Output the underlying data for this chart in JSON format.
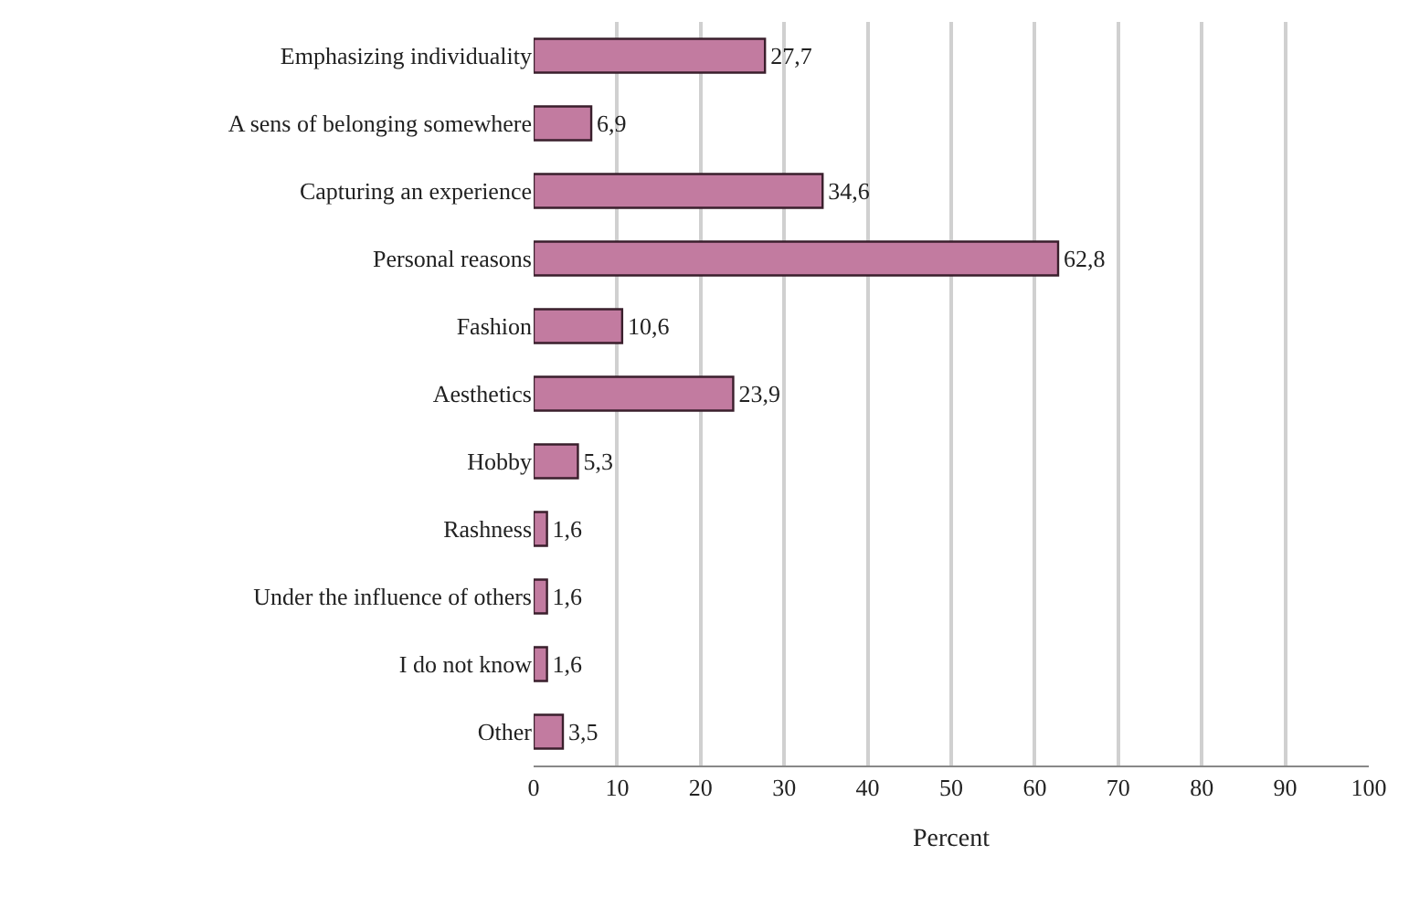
{
  "chart_data": {
    "type": "bar",
    "orientation": "horizontal",
    "xlabel": "Percent",
    "categories": [
      "Emphasizing individuality",
      "A sens of belonging somewhere",
      "Capturing an experience",
      "Personal reasons",
      "Fashion",
      "Aesthetics",
      "Hobby",
      "Rashness",
      "Under the influence of others",
      "I do not know",
      "Other"
    ],
    "values": [
      27.7,
      6.9,
      34.6,
      62.8,
      10.6,
      23.9,
      5.3,
      1.6,
      1.6,
      1.6,
      3.5
    ],
    "value_labels": [
      "27,7",
      "6,9",
      "34,6",
      "62,8",
      "10,6",
      "23,9",
      "5,3",
      "1,6",
      "1,6",
      "1,6",
      "3,5"
    ],
    "color": "#c27ba0",
    "xlim": [
      0,
      100
    ],
    "xticks": [
      0,
      10,
      20,
      30,
      40,
      50,
      60,
      70,
      80,
      90,
      100
    ],
    "grid": "x",
    "legend": false
  }
}
